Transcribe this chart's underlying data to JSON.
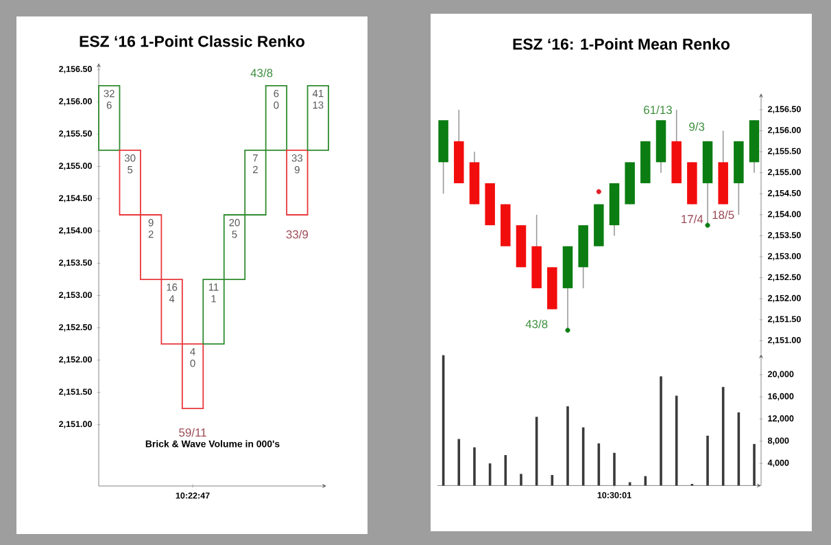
{
  "chart_data": [
    {
      "type": "bar",
      "title": "ESZ ‘16 1-Point Classic Renko",
      "categories": [
        null,
        null,
        null,
        null,
        "10:22:47",
        null,
        null,
        null,
        null,
        null,
        null
      ],
      "base": [
        2155.25,
        2155.25,
        2154.25,
        2153.25,
        2152.25,
        2152.25,
        2153.25,
        2154.25,
        2155.25,
        2155.25,
        2155.25
      ],
      "values": [
        1,
        -1,
        -1,
        -1,
        -1,
        1,
        1,
        1,
        1,
        -1,
        1
      ],
      "colors": [
        "#2e8b2e",
        "#e8373b",
        "#e8373b",
        "#e8373b",
        "#e8373b",
        "#2e8b2e",
        "#2e8b2e",
        "#2e8b2e",
        "#2e8b2e",
        "#e8373b",
        "#2e8b2e"
      ],
      "ylim": [
        2150.05,
        2156.6
      ],
      "yticks": [
        {
          "value": 2151.0,
          "label": "2,151.00"
        },
        {
          "value": 2151.5,
          "label": "2,151.50"
        },
        {
          "value": 2152.0,
          "label": "2,152.00"
        },
        {
          "value": 2152.5,
          "label": "2,152.50"
        },
        {
          "value": 2153.0,
          "label": "2,153.00"
        },
        {
          "value": 2153.5,
          "label": "2,153.50"
        },
        {
          "value": 2154.0,
          "label": "2,154.00"
        },
        {
          "value": 2154.5,
          "label": "2,154.50"
        },
        {
          "value": 2155.0,
          "label": "2,155.00"
        },
        {
          "value": 2155.5,
          "label": "2,155.50"
        },
        {
          "value": 2156.0,
          "label": "2,156.00"
        },
        {
          "value": 2156.5,
          "label": "2,156.50"
        }
      ],
      "annotations": [
        "32 6",
        "30 5",
        "9 2",
        "16 4",
        "4 0",
        "11 1",
        "20 5",
        "7 2",
        "6 0",
        "33 9",
        "41 13",
        "43/8",
        "33/9",
        "59/11",
        "Brick & Wave Volume in 000's"
      ]
    },
    {
      "type": "candlestick",
      "title": "ESZ ‘16: 1-Point Mean Renko",
      "categories": [
        null,
        null,
        null,
        null,
        null,
        null,
        null,
        null,
        null,
        null,
        null,
        null,
        null,
        null,
        null,
        null,
        null,
        null,
        null,
        null,
        null
      ],
      "ohlc": [
        [
          2155.25,
          2156.25,
          2154.5,
          2156.25
        ],
        [
          2155.75,
          2156.5,
          2154.75,
          2154.75
        ],
        [
          2155.25,
          2155.5,
          2154.25,
          2154.25
        ],
        [
          2154.75,
          2154.75,
          2153.75,
          2153.75
        ],
        [
          2154.25,
          2154.25,
          2153.25,
          2153.25
        ],
        [
          2153.75,
          2153.75,
          2152.75,
          2152.75
        ],
        [
          2153.25,
          2154.0,
          2152.25,
          2152.25
        ],
        [
          2152.75,
          2152.75,
          2151.75,
          2151.75
        ],
        [
          2152.25,
          2153.25,
          2151.25,
          2153.25
        ],
        [
          2152.75,
          2153.75,
          2152.25,
          2153.75
        ],
        [
          2153.25,
          2154.25,
          2153.25,
          2154.25
        ],
        [
          2153.75,
          2154.75,
          2153.5,
          2154.75
        ],
        [
          2154.25,
          2155.25,
          2154.25,
          2155.25
        ],
        [
          2154.75,
          2155.75,
          2154.75,
          2155.75
        ],
        [
          2155.25,
          2156.25,
          2155.0,
          2156.25
        ],
        [
          2155.75,
          2156.5,
          2154.75,
          2154.75
        ],
        [
          2155.25,
          2155.25,
          2154.25,
          2154.25
        ],
        [
          2154.75,
          2155.75,
          2153.75,
          2155.75
        ],
        [
          2155.25,
          2156.0,
          2154.25,
          2154.25
        ],
        [
          2154.75,
          2155.75,
          2154.0,
          2155.75
        ],
        [
          2155.25,
          2156.25,
          2155.0,
          2156.25
        ]
      ],
      "colors": [
        "#0b7d12",
        "#f20d0d",
        "#f20d0d",
        "#f20d0d",
        "#f20d0d",
        "#f20d0d",
        "#f20d0d",
        "#f20d0d",
        "#0b7d12",
        "#0b7d12",
        "#0b7d12",
        "#0b7d12",
        "#0b7d12",
        "#0b7d12",
        "#0b7d12",
        "#f20d0d",
        "#f20d0d",
        "#0b7d12",
        "#f20d0d",
        "#0b7d12",
        "#0b7d12"
      ],
      "series": [
        {
          "type": "scatter",
          "color": "#0b7d12",
          "values": [
            null,
            null,
            null,
            null,
            null,
            null,
            null,
            null,
            2151.25,
            null,
            null,
            null,
            null,
            null,
            null,
            null,
            null,
            2153.75,
            null,
            null,
            null
          ]
        },
        {
          "type": "scatter",
          "color": "#e0202a",
          "values": [
            null,
            null,
            null,
            null,
            null,
            null,
            null,
            null,
            null,
            null,
            2154.55,
            null,
            null,
            null,
            null,
            null,
            null,
            null,
            null,
            null,
            null
          ]
        }
      ],
      "marker": "circle",
      "ylim": [
        2150.68,
        2156.89
      ],
      "yticks": [
        {
          "value": 2151.0,
          "label": "2,151.00"
        },
        {
          "value": 2151.5,
          "label": "2,151.50"
        },
        {
          "value": 2152.0,
          "label": "2,152.00"
        },
        {
          "value": 2152.5,
          "label": "2,152.50"
        },
        {
          "value": 2153.0,
          "label": "2,153.00"
        },
        {
          "value": 2153.5,
          "label": "2,153.50"
        },
        {
          "value": 2154.0,
          "label": "2,154.00"
        },
        {
          "value": 2154.5,
          "label": "2,154.50"
        },
        {
          "value": 2155.0,
          "label": "2,155.00"
        },
        {
          "value": 2155.5,
          "label": "2,155.50"
        },
        {
          "value": 2156.0,
          "label": "2,156.00"
        },
        {
          "value": 2156.5,
          "label": "2,156.50"
        }
      ],
      "tick_labels": "y",
      "annotations": [
        "61/13",
        "9/3",
        "43/8",
        "17/4",
        "18/5"
      ]
    },
    {
      "type": "bar",
      "categories": [
        null,
        null,
        null,
        null,
        null,
        null,
        null,
        null,
        null,
        null,
        null,
        "10:30:01",
        null,
        null,
        null,
        null,
        null,
        null,
        null,
        null,
        null
      ],
      "values": [
        23500,
        8400,
        6900,
        4000,
        5500,
        2100,
        12400,
        1900,
        14300,
        10500,
        7600,
        5900,
        600,
        1700,
        19700,
        16200,
        300,
        9000,
        17800,
        13200,
        7500
      ],
      "color": "#3a3a3a",
      "ylim": [
        0,
        23700
      ],
      "yticks": [
        {
          "value": 4000,
          "label": "4,000"
        },
        {
          "value": 8000,
          "label": "8,000"
        },
        {
          "value": 12000,
          "label": "12,000"
        },
        {
          "value": 16000,
          "label": "16,000"
        },
        {
          "value": 20000,
          "label": "20,000"
        }
      ]
    }
  ]
}
